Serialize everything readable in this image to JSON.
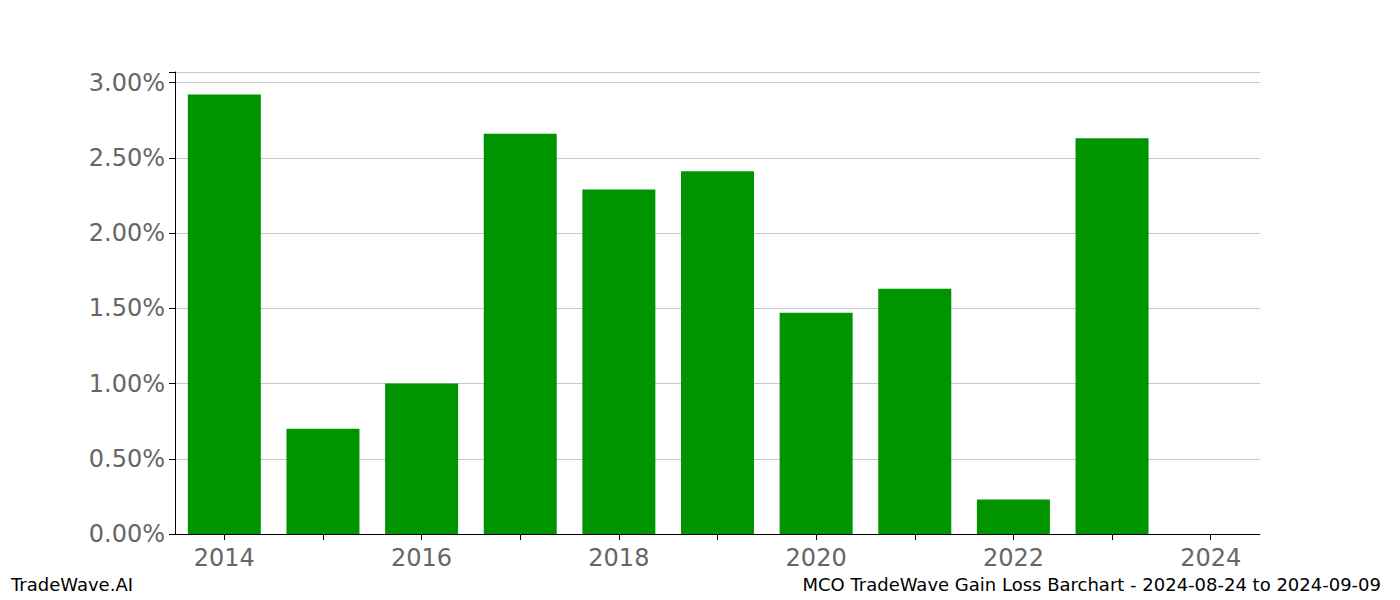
{
  "chart_data": {
    "type": "bar",
    "title": "MCO TradeWave Gain Loss Barchart - 2024-08-24 to 2024-09-09",
    "annotations": [
      "TradeWave.AI"
    ],
    "categories": [
      "2014",
      null,
      "2016",
      null,
      "2018",
      null,
      "2020",
      null,
      "2022",
      null,
      "2024"
    ],
    "values": [
      2.92,
      0.7,
      1.0,
      2.66,
      2.29,
      2.41,
      1.47,
      1.63,
      0.23,
      2.63,
      0
    ],
    "color": "#009400",
    "ylim": [
      0,
      3.07
    ],
    "yticks": [
      {
        "value": 0,
        "label": "0.00%"
      },
      {
        "value": 0.5,
        "label": "0.50%"
      },
      {
        "value": 1,
        "label": "1.00%"
      },
      {
        "value": 1.5,
        "label": "1.50%"
      },
      {
        "value": 2,
        "label": "2.00%"
      },
      {
        "value": 2.5,
        "label": "2.50%"
      },
      {
        "value": 3,
        "label": "3.00%"
      }
    ],
    "grid": true
  }
}
